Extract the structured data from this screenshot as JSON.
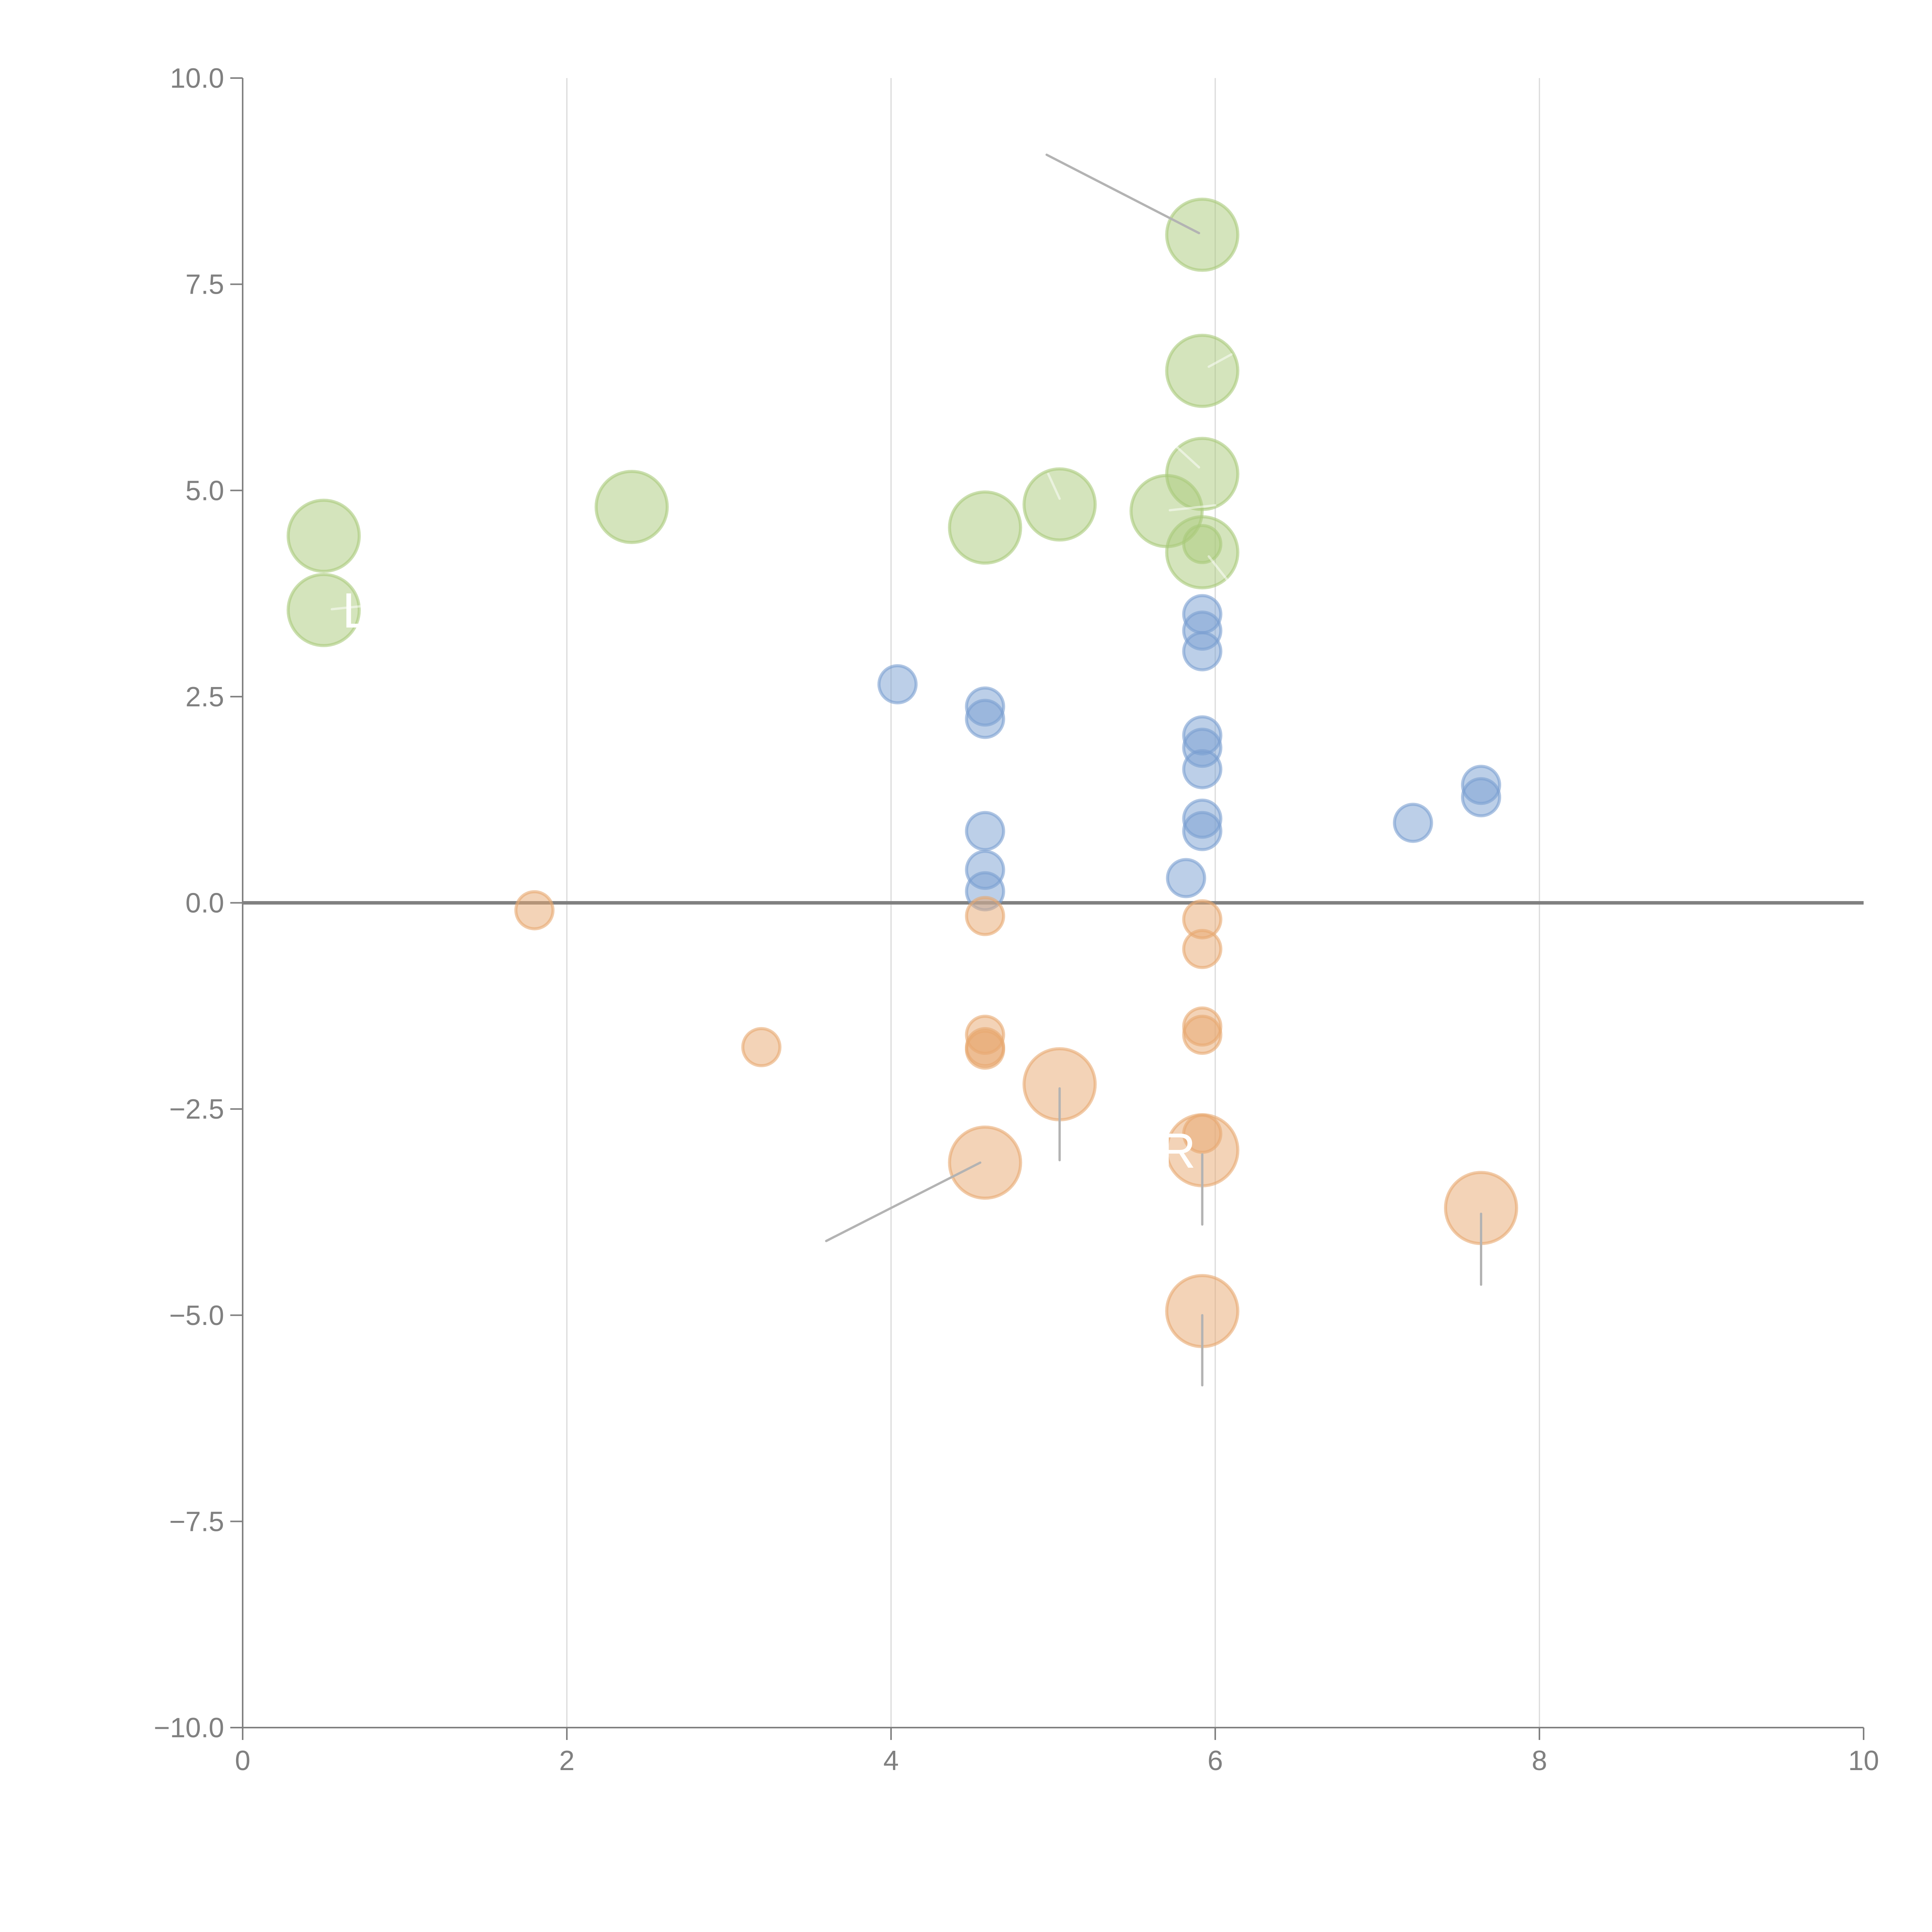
{
  "chart_data": {
    "type": "scatter",
    "subtype": "bubble",
    "title": "",
    "xlabel": "",
    "ylabel": "",
    "xlim": [
      0,
      10
    ],
    "ylim": [
      -10,
      10
    ],
    "x_ticks": [
      "0",
      "2",
      "4",
      "6",
      "8",
      "10"
    ],
    "x_tick_values": [
      0,
      2,
      4,
      6,
      8,
      10
    ],
    "y_ticks": [
      "10.0",
      "7.5",
      "5.0",
      "2.5",
      "0.0",
      "−2.5",
      "−5.0",
      "−7.5",
      "−10.0"
    ],
    "y_tick_values": [
      10,
      7.5,
      5,
      2.5,
      0,
      -2.5,
      -5,
      -7.5,
      -10
    ],
    "grid": "vertical",
    "reference_line_y": 0,
    "legend": "none",
    "series": [
      {
        "name": "green",
        "color": "#a9c97a",
        "points": [
          {
            "x": 0.5,
            "y": 4.45,
            "size": 3
          },
          {
            "x": 0.5,
            "y": 3.55,
            "size": 3,
            "label": "L",
            "label_dx": 0.2,
            "label_dy": 0.0
          },
          {
            "x": 2.4,
            "y": 4.8,
            "size": 3
          },
          {
            "x": 4.58,
            "y": 4.55,
            "size": 3
          },
          {
            "x": 5.04,
            "y": 4.83,
            "size": 3
          },
          {
            "x": 5.7,
            "y": 4.75,
            "size": 3
          },
          {
            "x": 5.92,
            "y": 8.1,
            "size": 3
          },
          {
            "x": 5.92,
            "y": 6.45,
            "size": 3
          },
          {
            "x": 5.92,
            "y": 5.2,
            "size": 3
          },
          {
            "x": 5.92,
            "y": 4.25,
            "size": 3
          },
          {
            "x": 5.92,
            "y": 4.35,
            "size": 1
          }
        ]
      },
      {
        "name": "blue",
        "color": "#7a9fd1",
        "points": [
          {
            "x": 4.04,
            "y": 2.65,
            "size": 1
          },
          {
            "x": 4.58,
            "y": 2.38,
            "size": 1
          },
          {
            "x": 4.58,
            "y": 2.23,
            "size": 1
          },
          {
            "x": 4.58,
            "y": 0.87,
            "size": 1
          },
          {
            "x": 4.58,
            "y": 0.4,
            "size": 1
          },
          {
            "x": 4.58,
            "y": 0.14,
            "size": 1
          },
          {
            "x": 5.92,
            "y": 3.5,
            "size": 1
          },
          {
            "x": 5.92,
            "y": 3.3,
            "size": 1
          },
          {
            "x": 5.92,
            "y": 3.05,
            "size": 1
          },
          {
            "x": 5.92,
            "y": 2.03,
            "size": 1
          },
          {
            "x": 5.92,
            "y": 1.88,
            "size": 1
          },
          {
            "x": 5.92,
            "y": 1.62,
            "size": 1
          },
          {
            "x": 5.92,
            "y": 1.02,
            "size": 1
          },
          {
            "x": 5.92,
            "y": 0.87,
            "size": 1
          },
          {
            "x": 5.82,
            "y": 0.3,
            "size": 1
          },
          {
            "x": 7.22,
            "y": 0.97,
            "size": 1
          },
          {
            "x": 7.64,
            "y": 1.43,
            "size": 1
          },
          {
            "x": 7.64,
            "y": 1.28,
            "size": 1
          }
        ]
      },
      {
        "name": "orange",
        "color": "#e8a86f",
        "points": [
          {
            "x": 1.8,
            "y": -0.09,
            "size": 1
          },
          {
            "x": 3.2,
            "y": -1.75,
            "size": 1
          },
          {
            "x": 4.58,
            "y": -0.16,
            "size": 1
          },
          {
            "x": 4.58,
            "y": -1.6,
            "size": 1
          },
          {
            "x": 4.58,
            "y": -1.75,
            "size": 1
          },
          {
            "x": 4.58,
            "y": -1.78,
            "size": 1
          },
          {
            "x": 5.92,
            "y": -0.2,
            "size": 1
          },
          {
            "x": 5.92,
            "y": -0.56,
            "size": 1
          },
          {
            "x": 5.92,
            "y": -1.5,
            "size": 1
          },
          {
            "x": 5.92,
            "y": -1.6,
            "size": 1
          },
          {
            "x": 5.92,
            "y": -2.8,
            "size": 1
          },
          {
            "x": 5.04,
            "y": -2.2,
            "size": 3
          },
          {
            "x": 4.58,
            "y": -3.15,
            "size": 3
          },
          {
            "x": 5.92,
            "y": -3.0,
            "size": 3,
            "label": "R",
            "label_dx": -0.15,
            "label_dy": 0.0
          },
          {
            "x": 7.64,
            "y": -3.7,
            "size": 3
          },
          {
            "x": 5.92,
            "y": -4.95,
            "size": 3
          }
        ]
      }
    ],
    "leader_lines": [
      {
        "from": [
          5.9,
          8.12
        ],
        "to": [
          4.96,
          9.07
        ],
        "style": "gray"
      },
      {
        "from": [
          5.96,
          6.5
        ],
        "to": [
          6.1,
          6.65
        ],
        "style": "light"
      },
      {
        "from": [
          5.9,
          5.28
        ],
        "to": [
          5.75,
          5.55
        ],
        "style": "light"
      },
      {
        "from": [
          5.04,
          4.9
        ],
        "to": [
          4.97,
          5.2
        ],
        "style": "light"
      },
      {
        "from": [
          5.72,
          4.76
        ],
        "to": [
          6.0,
          4.82
        ],
        "style": "light"
      },
      {
        "from": [
          5.96,
          4.2
        ],
        "to": [
          6.08,
          3.9
        ],
        "style": "light"
      },
      {
        "from": [
          0.55,
          3.56
        ],
        "to": [
          0.75,
          3.6
        ],
        "style": "light"
      },
      {
        "from": [
          5.04,
          -2.25
        ],
        "to": [
          5.04,
          -3.12
        ],
        "style": "gray"
      },
      {
        "from": [
          4.55,
          -3.15
        ],
        "to": [
          3.6,
          -4.1
        ],
        "style": "gray"
      },
      {
        "from": [
          5.92,
          -3.05
        ],
        "to": [
          5.92,
          -3.9
        ],
        "style": "gray"
      },
      {
        "from": [
          7.64,
          -3.77
        ],
        "to": [
          7.64,
          -4.63
        ],
        "style": "gray"
      },
      {
        "from": [
          5.92,
          -5.0
        ],
        "to": [
          5.92,
          -5.85
        ],
        "style": "gray"
      }
    ]
  }
}
